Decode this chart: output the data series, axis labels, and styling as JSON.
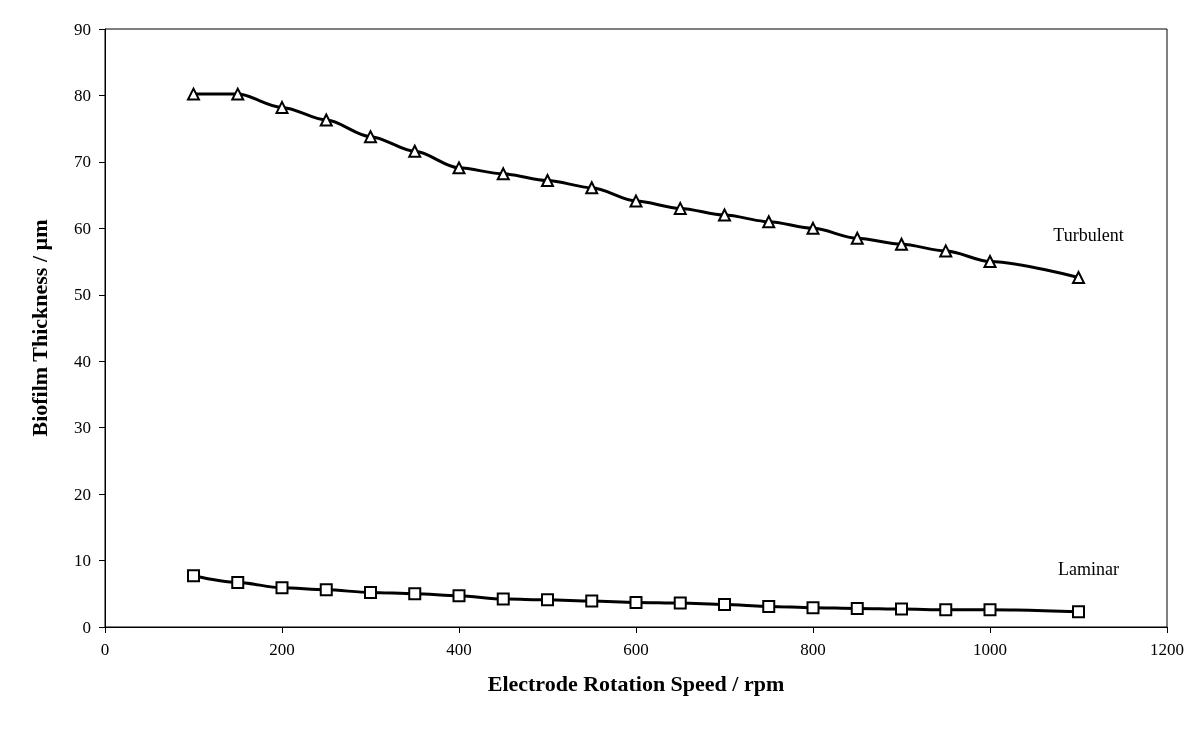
{
  "chart_data": {
    "type": "line",
    "xlabel": "Electrode Rotation Speed / rpm",
    "ylabel": "Biofilm Thickness / µm",
    "x": [
      100,
      150,
      200,
      250,
      300,
      350,
      400,
      450,
      500,
      550,
      600,
      650,
      700,
      750,
      800,
      850,
      900,
      950,
      1000,
      1100
    ],
    "series": [
      {
        "name": "Turbulent",
        "color": "#000000",
        "marker": "triangle",
        "values": [
          80.2,
          80.2,
          78.2,
          76.3,
          73.8,
          71.6,
          69.1,
          68.2,
          67.2,
          66.1,
          64.1,
          63.0,
          62.0,
          61.0,
          60.0,
          58.5,
          57.6,
          56.6,
          55.0,
          52.6
        ]
      },
      {
        "name": "Laminar",
        "color": "#000000",
        "marker": "square",
        "values": [
          7.7,
          6.7,
          5.9,
          5.6,
          5.2,
          5.0,
          4.7,
          4.2,
          4.1,
          3.9,
          3.7,
          3.6,
          3.4,
          3.1,
          2.9,
          2.8,
          2.7,
          2.6,
          2.6,
          2.3
        ]
      }
    ],
    "xlim": [
      0,
      1200
    ],
    "xticks": [
      0,
      200,
      400,
      600,
      800,
      1000,
      1200
    ],
    "ylim": [
      0,
      90
    ],
    "yticks": [
      0,
      10,
      20,
      30,
      40,
      50,
      60,
      70,
      80,
      90
    ],
    "grid": false,
    "legend": false,
    "line_style": "solid"
  }
}
